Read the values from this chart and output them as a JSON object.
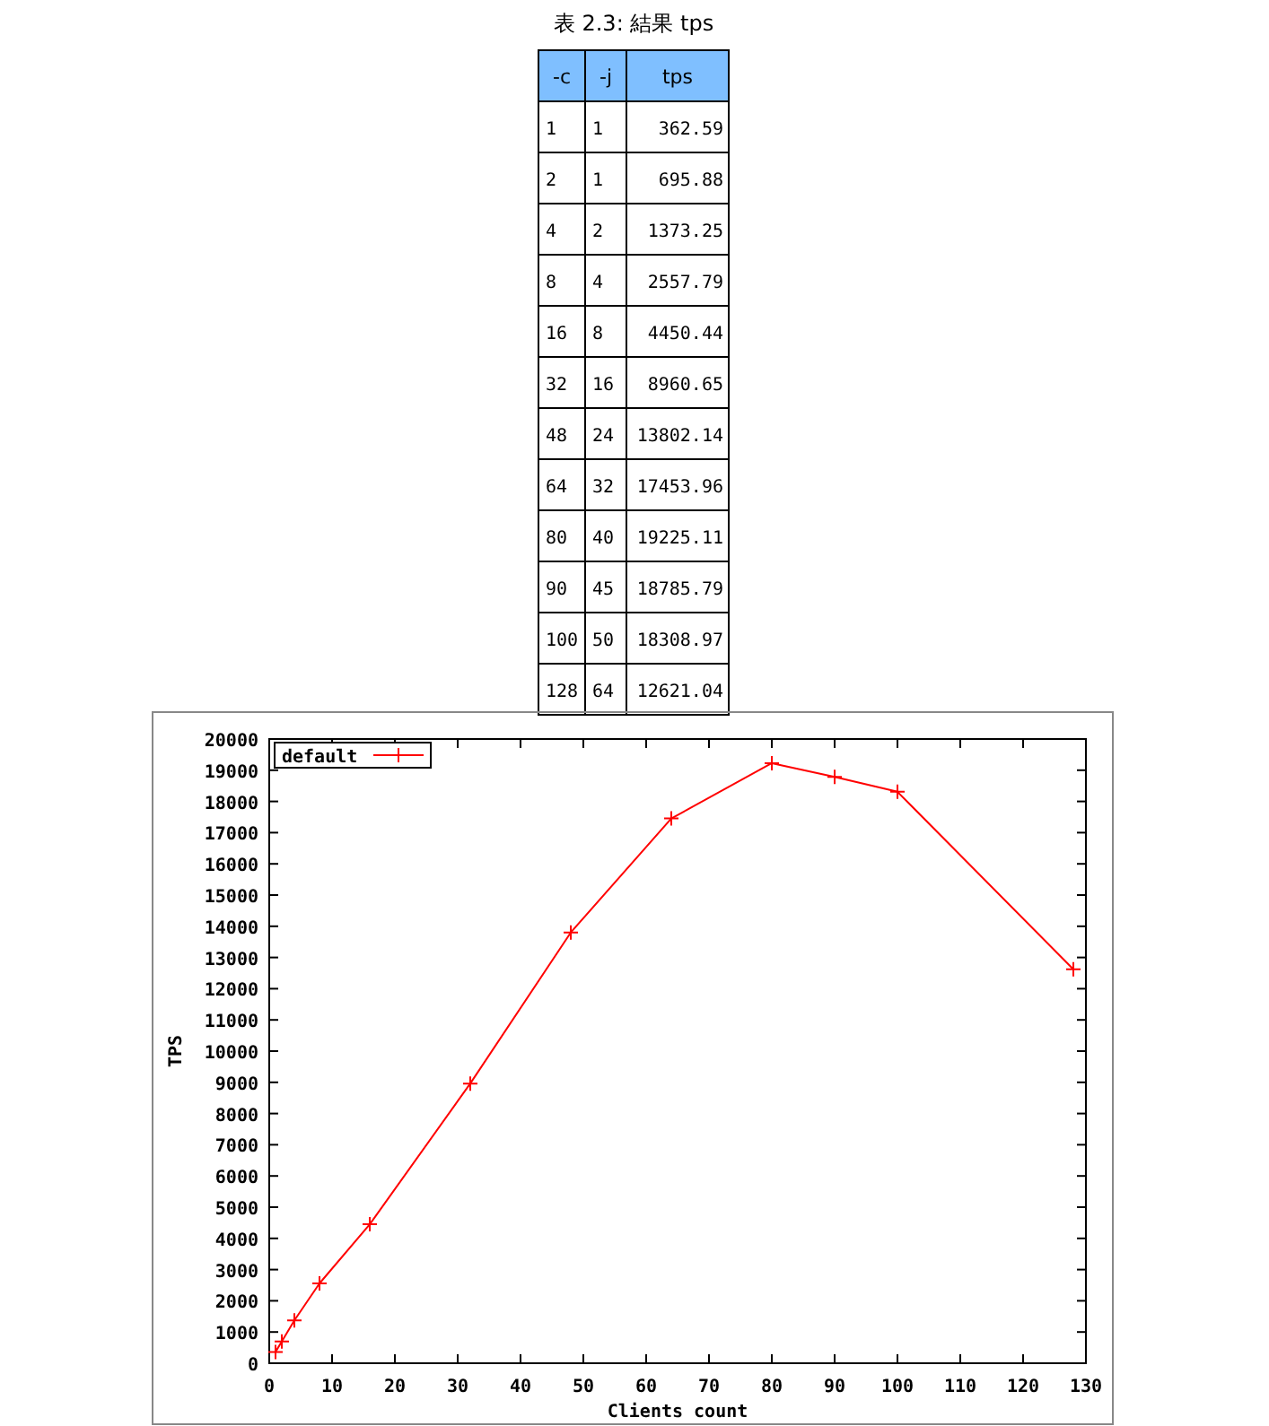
{
  "chart_data": {
    "type": "line",
    "title": "表 2.3: 結果 tps",
    "xlabel": "Clients count",
    "ylabel": "TPS",
    "x": [
      1,
      2,
      4,
      8,
      16,
      32,
      48,
      64,
      80,
      90,
      100,
      128
    ],
    "series": [
      {
        "name": "default",
        "color": "#ff0000",
        "values": [
          362.59,
          695.88,
          1373.25,
          2557.79,
          4450.44,
          8960.65,
          13802.14,
          17453.96,
          19225.11,
          18785.79,
          18308.97,
          12621.04
        ]
      }
    ],
    "annotations": [
      "-c",
      "-j",
      "tps",
      "1",
      "1",
      "362.59",
      "2",
      "1",
      "695.88",
      "4",
      "2",
      "1373.25",
      "8",
      "4",
      "2557.79",
      "16",
      "8",
      "4450.44",
      "32",
      "16",
      "8960.65",
      "48",
      "24",
      "13802.14",
      "64",
      "32",
      "17453.96",
      "80",
      "40",
      "19225.11",
      "90",
      "45",
      "18785.79",
      "100",
      "50",
      "18308.97",
      "128",
      "64",
      "12621.04"
    ],
    "xlim": [
      0,
      130
    ],
    "xticks": [
      0,
      10,
      20,
      30,
      40,
      50,
      60,
      70,
      80,
      90,
      100,
      110,
      120,
      130
    ],
    "ylim": [
      0,
      20000
    ],
    "yticks": [
      0,
      1000,
      2000,
      3000,
      4000,
      5000,
      6000,
      7000,
      8000,
      9000,
      10000,
      11000,
      12000,
      13000,
      14000,
      15000,
      16000,
      17000,
      18000,
      19000,
      20000
    ],
    "grid": false,
    "legend": "top left",
    "marker": "cross",
    "line_style": "solid"
  }
}
